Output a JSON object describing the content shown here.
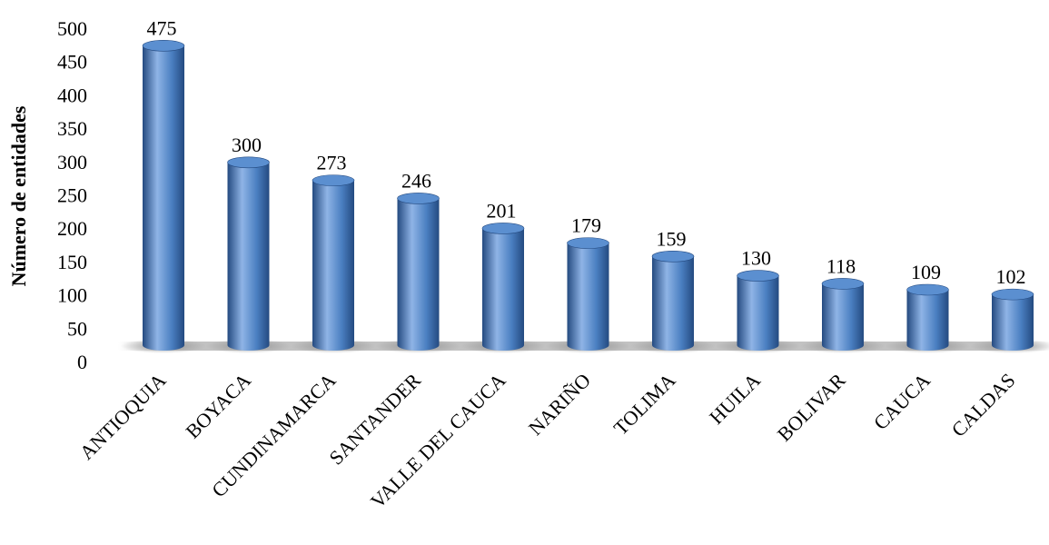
{
  "chart_data": {
    "type": "bar",
    "categories": [
      "ANTIOQUIA",
      "BOYACA",
      "CUNDINAMARCA",
      "SANTANDER",
      "VALLE DEL CAUCA",
      "NARIÑO",
      "TOLIMA",
      "HUILA",
      "BOLIVAR",
      "CAUCA",
      "CALDAS"
    ],
    "values": [
      475,
      300,
      273,
      246,
      201,
      179,
      159,
      130,
      118,
      109,
      102
    ],
    "data_labels": [
      "475",
      "300",
      "273",
      "246",
      "201",
      "179",
      "159",
      "130",
      "118",
      "109",
      "102"
    ],
    "title": "",
    "xlabel": "",
    "ylabel": "Número de entidades",
    "ylim": [
      0,
      500
    ],
    "yticks": [
      0,
      50,
      100,
      150,
      200,
      250,
      300,
      350,
      400,
      450,
      500
    ],
    "ytick_labels": [
      "0",
      "50",
      "100",
      "150",
      "200",
      "250",
      "300",
      "350",
      "400",
      "450",
      "500"
    ],
    "grid": false,
    "legend": "none",
    "style": "3d-cylinder",
    "colors": {
      "bar": "#4a7fc1",
      "bar_dark": "#244a80",
      "bar_light": "#8fb4e6",
      "top": "#5b8fd0",
      "floor_shadow": "#9a9a9a"
    }
  }
}
